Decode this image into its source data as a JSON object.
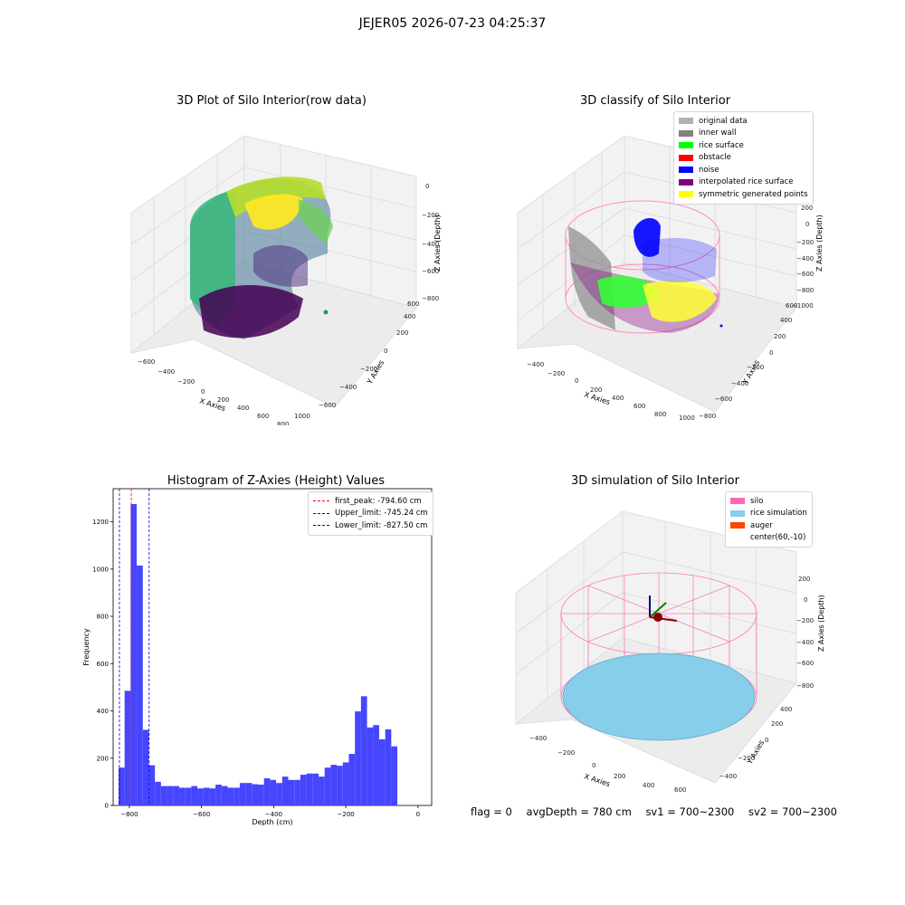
{
  "suptitle": "JEJER05 2026-07-23 04:25:37",
  "panels": {
    "raw": {
      "title": "3D Plot of Silo Interior(row data)",
      "xlabel": "X Axies",
      "ylabel": "Y Axies",
      "zlabel": "Z Axies (Depth)",
      "xticks": [
        "−600",
        "−400",
        "−200",
        "0",
        "200",
        "400",
        "600",
        "800",
        "1000"
      ],
      "yticks": [
        "−600",
        "−400",
        "−200",
        "0",
        "200",
        "400",
        "600"
      ],
      "zticks": [
        "0",
        "−200",
        "−400",
        "−600",
        "−800"
      ]
    },
    "classify": {
      "title": "3D classify of Silo Interior",
      "xlabel": "X Axies",
      "ylabel": "Y Axies",
      "zlabel": "Z Axies (Depth)",
      "xticks": [
        "−400",
        "−200",
        "0",
        "200",
        "400",
        "600",
        "800",
        "1000"
      ],
      "yticks": [
        "−800",
        "−600",
        "−400",
        "−200",
        "0",
        "200",
        "400",
        "600"
      ],
      "zticks": [
        "200",
        "0",
        "−200",
        "−400",
        "−600",
        "−800",
        "−1000"
      ],
      "legend": [
        {
          "label": "original data",
          "color": "#b0b0b0"
        },
        {
          "label": "inner wall",
          "color": "#808080"
        },
        {
          "label": "rice surface",
          "color": "#00ff00"
        },
        {
          "label": "obstacle",
          "color": "#ff0000"
        },
        {
          "label": "noise",
          "color": "#0000ff"
        },
        {
          "label": "interpolated rice surface",
          "color": "#800080"
        },
        {
          "label": "symmetric generated points",
          "color": "#ffff00"
        }
      ]
    },
    "simulation": {
      "title": "3D simulation of Silo Interior",
      "xlabel": "X Axies",
      "ylabel": "Y Axies",
      "zlabel": "Z Axies (Depth)",
      "xticks": [
        "−400",
        "−200",
        "0",
        "200",
        "400",
        "600"
      ],
      "yticks": [
        "−400",
        "−200",
        "0",
        "200",
        "400"
      ],
      "zticks": [
        "200",
        "0",
        "−200",
        "−400",
        "−600",
        "−800"
      ],
      "legend": [
        {
          "label": "silo",
          "color": "#ff69b4"
        },
        {
          "label": "rice simulation",
          "color": "#87ceeb"
        },
        {
          "label": "auger",
          "color": "#ff4500"
        },
        {
          "label": "center(60,-10)",
          "color": ""
        }
      ]
    }
  },
  "chart_data": {
    "type": "bar",
    "title": "Histogram of Z-Axies (Height) Values",
    "xlabel": "Depth (cm)",
    "ylabel": "Frequency",
    "xlim": [
      -845,
      38
    ],
    "ylim": [
      0,
      1340
    ],
    "xticks": [
      -800,
      -600,
      -400,
      -200,
      0
    ],
    "yticks": [
      0,
      200,
      400,
      600,
      800,
      1000,
      1200
    ],
    "bin_start": -830,
    "bin_width": 16.8,
    "values": [
      160,
      485,
      1275,
      1015,
      320,
      170,
      100,
      82,
      82,
      82,
      75,
      75,
      82,
      72,
      75,
      72,
      88,
      82,
      75,
      75,
      95,
      95,
      90,
      88,
      115,
      108,
      95,
      122,
      108,
      108,
      130,
      135,
      135,
      122,
      160,
      172,
      168,
      182,
      218,
      398,
      462,
      330,
      340,
      280,
      322,
      250
    ],
    "bar_color": "#4646ff",
    "lines": [
      {
        "label": "first_peak: -794.60 cm",
        "x": -794.6,
        "color": "#ff0000"
      },
      {
        "label": "Upper_limit: -745.24 cm",
        "x": -745.24,
        "color": "#0000cc"
      },
      {
        "label": "Lower_limit: -827.50 cm",
        "x": -827.5,
        "color": "#0000cc"
      }
    ],
    "legend_position": "top-right"
  },
  "status": {
    "flag": "flag = 0",
    "avg": "avgDepth = 780 cm",
    "sv1": "sv1 = 700~2300",
    "sv2": "sv2 = 700~2300"
  }
}
